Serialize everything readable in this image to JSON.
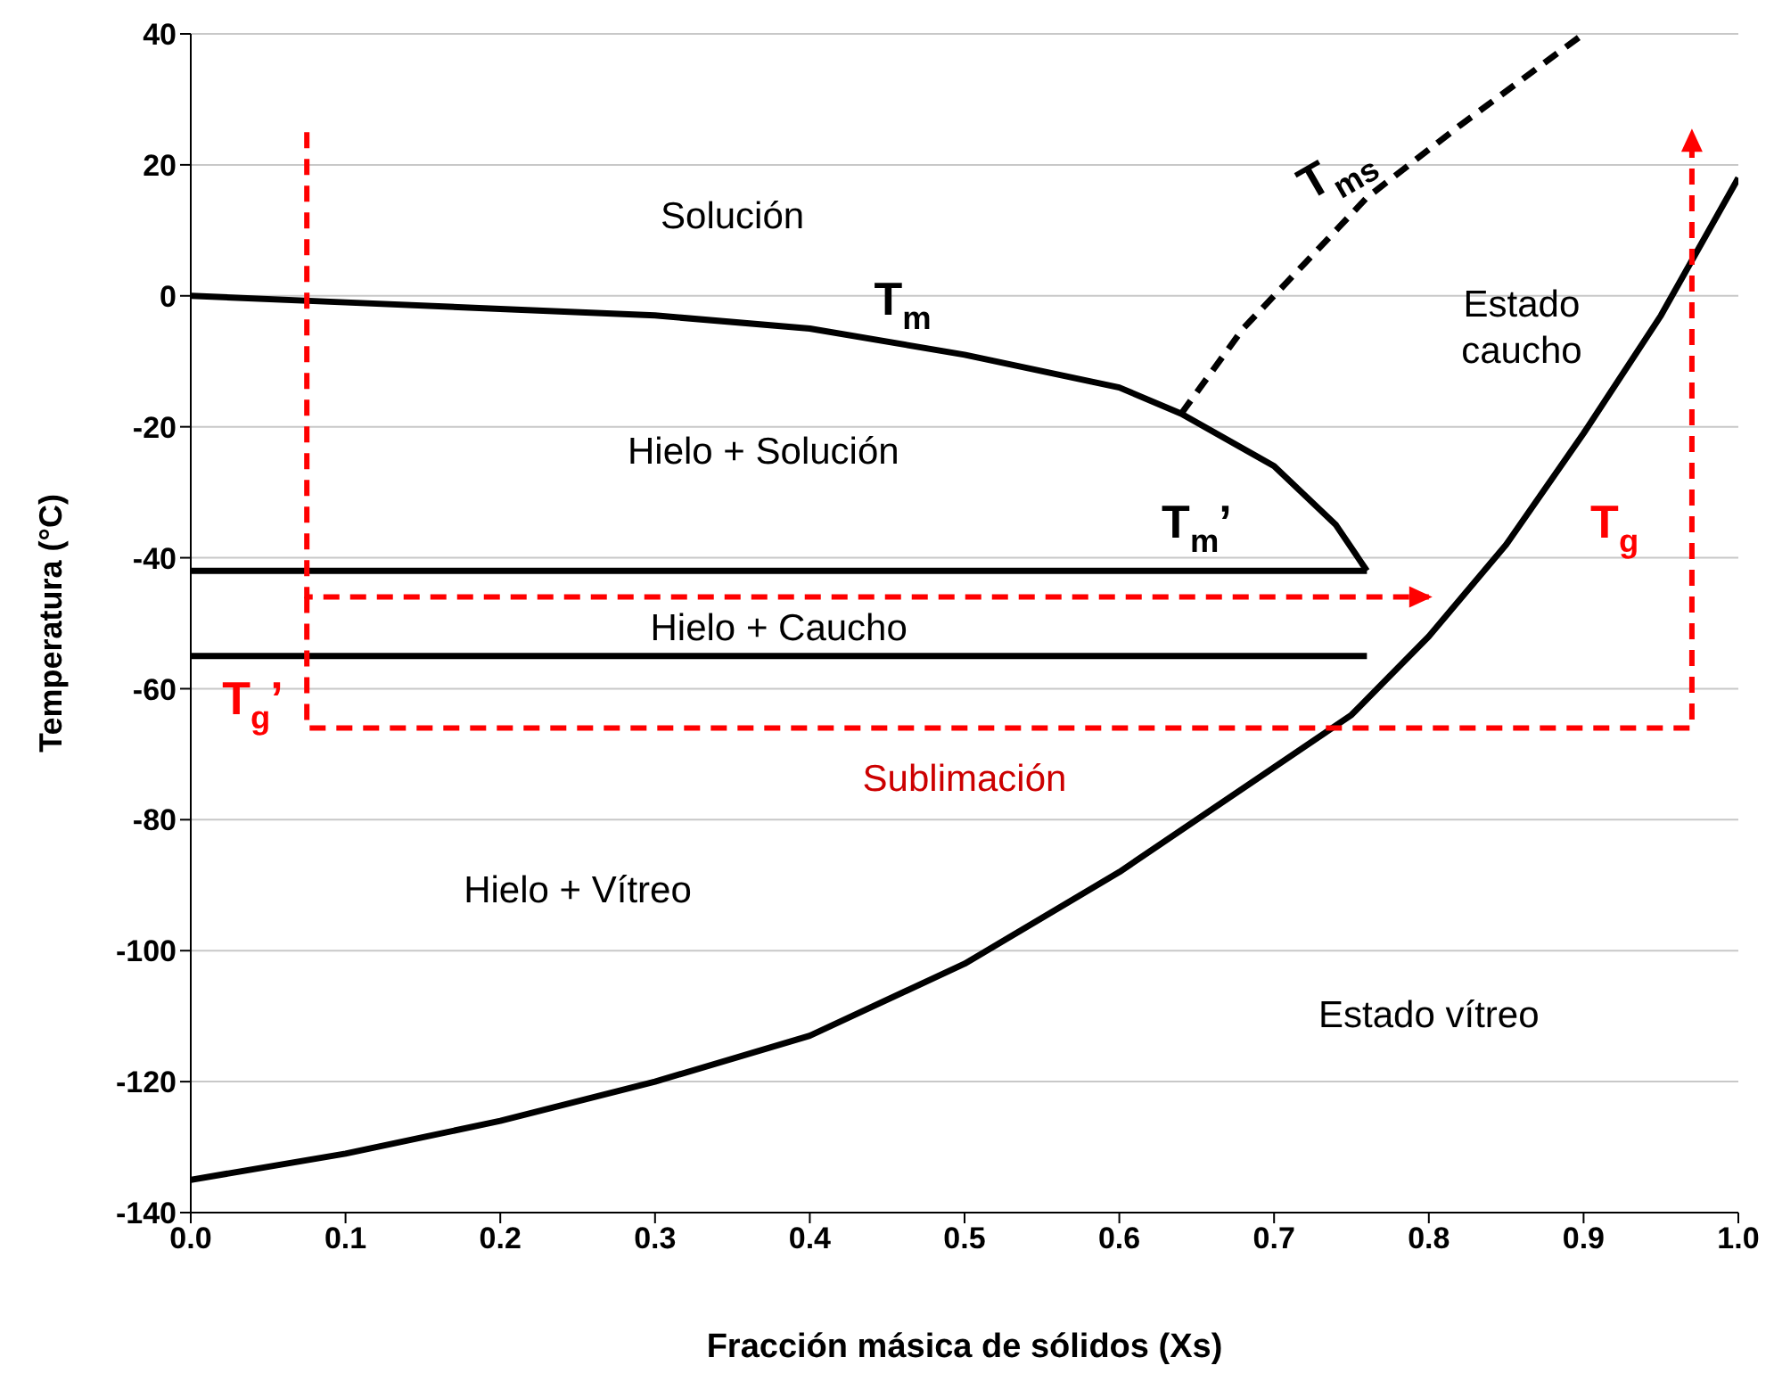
{
  "chart_data": {
    "type": "line",
    "xlabel": "Fracción másica de sólidos (Xs)",
    "ylabel": "Temperatura (°C)",
    "xlim": [
      0,
      1
    ],
    "xticks": [
      {
        "value": 0,
        "label": "0.0"
      },
      {
        "value": 0.1,
        "label": "0.1"
      },
      {
        "value": 0.2,
        "label": "0.2"
      },
      {
        "value": 0.3,
        "label": "0.3"
      },
      {
        "value": 0.4,
        "label": "0.4"
      },
      {
        "value": 0.5,
        "label": "0.5"
      },
      {
        "value": 0.6,
        "label": "0.6"
      },
      {
        "value": 0.7,
        "label": "0.7"
      },
      {
        "value": 0.8,
        "label": "0.8"
      },
      {
        "value": 0.9,
        "label": "0.9"
      },
      {
        "value": 1,
        "label": "1.0"
      }
    ],
    "ylim": [
      -140,
      40
    ],
    "yticks": [
      -140,
      -120,
      -100,
      -80,
      -60,
      -40,
      -20,
      0,
      20,
      40
    ],
    "grid": "y",
    "marker": "none",
    "series": [
      {
        "name": "T$_{m}$",
        "color": "#000000",
        "line_style": "solid",
        "x": [
          0,
          0.1,
          0.2,
          0.3,
          0.4,
          0.5,
          0.6,
          0.64,
          0.7,
          0.74,
          0.76
        ],
        "values": [
          0,
          -1,
          -2,
          -3,
          -5,
          -9,
          -14,
          -18,
          -26,
          -35,
          -42
        ]
      },
      {
        "name": "T$_{ms}$",
        "color": "#000000",
        "line_style": "dashed",
        "x": [
          0.64,
          0.68,
          0.72,
          0.76,
          0.82,
          0.9
        ],
        "values": [
          -18,
          -5,
          5,
          15,
          26,
          40
        ]
      },
      {
        "name": "T$_{g}$",
        "color": "#000000",
        "line_style": "solid",
        "x": [
          0,
          0.1,
          0.2,
          0.3,
          0.4,
          0.5,
          0.6,
          0.7,
          0.75,
          0.8,
          0.85,
          0.9,
          0.95,
          1
        ],
        "values": [
          -135,
          -131,
          -126,
          -120,
          -113,
          -102,
          -88,
          -72,
          -64,
          -52,
          -38,
          -21,
          -3,
          18
        ]
      },
      {
        "name": "T$_{m}$’",
        "color": "#000000",
        "line_style": "solid",
        "x": [
          0,
          0.76
        ],
        "values": [
          -42,
          -42
        ]
      },
      {
        "name": "T$_{g}$’",
        "color": "#000000",
        "line_style": "solid",
        "x": [
          0,
          0.76
        ],
        "values": [
          -55,
          -55
        ]
      }
    ],
    "annotations": [
      "Solución",
      "Estado\ncaucho",
      "Hielo + Solución",
      "Hielo + Caucho",
      "Sublimación",
      "Hielo + Vítreo",
      "Estado vítreo"
    ]
  }
}
